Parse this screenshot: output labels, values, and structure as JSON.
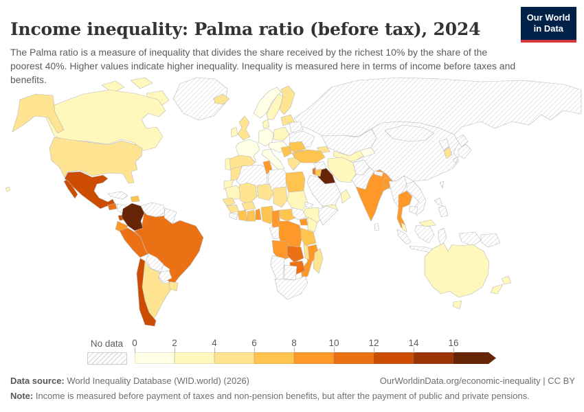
{
  "header": {
    "title": "Income inequality: Palma ratio (before tax), 2024",
    "subtitle": "The Palma ratio is a measure of inequality that divides the share received by the richest 10% by the share of the poorest 40%. Higher values indicate higher inequality. Inequality is measured here in terms of income before taxes and benefits.",
    "logo": {
      "line1": "Our World",
      "line2": "in Data",
      "bg": "#002147",
      "accent": "#D7383E"
    }
  },
  "legend": {
    "no_data_label": "No data",
    "ticks": [
      "0",
      "2",
      "4",
      "6",
      "8",
      "10",
      "12",
      "14",
      "16"
    ],
    "colors": [
      "#FFFFE5",
      "#FFF7BC",
      "#FEE391",
      "#FEC44F",
      "#FE9929",
      "#EC7014",
      "#CC4C02",
      "#993404"
    ],
    "arrow_color": "#662506"
  },
  "footer": {
    "source_label": "Data source:",
    "source_text": " World Inequality Database (WID.world) (2026)",
    "credit": "OurWorldinData.org/economic-inequality | CC BY",
    "note_label": "Note:",
    "note_text": " Income is measured before payment of taxes and non-pension benefits, but after the payment of public and private pensions."
  },
  "chart_data": {
    "type": "heatmap",
    "title": "Income inequality: Palma ratio (before tax), 2024",
    "unit": "Palma ratio (share of richest 10% divided by share of poorest 40%)",
    "axis_range": [
      0,
      16
    ],
    "legend_position": "bottom",
    "bins": [
      {
        "range": "0-2",
        "color": "#FFFFE5"
      },
      {
        "range": "2-4",
        "color": "#FFF7BC"
      },
      {
        "range": "4-6",
        "color": "#FEE391"
      },
      {
        "range": "6-8",
        "color": "#FEC44F"
      },
      {
        "range": "8-10",
        "color": "#FE9929"
      },
      {
        "range": "10-12",
        "color": "#EC7014"
      },
      {
        "range": "12-14",
        "color": "#CC4C02"
      },
      {
        "range": "14-16",
        "color": "#993404"
      },
      {
        "range": "16+",
        "color": "#662506"
      },
      {
        "range": "No data",
        "color": "hatched"
      }
    ]
  },
  "map": {
    "countries": {
      "greenland": "nodata",
      "arctic-islands": "#FFF7BC",
      "canada": "#FFF7BC",
      "alaska": "#FEE391",
      "usa": "#FEE391",
      "hawaii": "#FFF7BC",
      "mexico": "#CC4C02",
      "guatemala": "#EC7014",
      "honduras-nicaragua": "nodata",
      "costa-rica": "#CC4C02",
      "panama": "#EC7014",
      "cuba": "nodata",
      "hispaniola": "#FEC44F",
      "brazil": "#EC7014",
      "venezuela": "nodata",
      "guyanas": "nodata",
      "colombia": "#662506",
      "ecuador": "#FE9929",
      "peru": "#EC7014",
      "bolivia": "nodata",
      "paraguay": "nodata",
      "argentina": "#FEE391",
      "uruguay": "#FEE391",
      "chile": "#CC4C02",
      "iceland": "#FEE391",
      "norway": "#FFFFE5",
      "sweden": "#FFF7BC",
      "finland": "#FEE391",
      "baltics": "#FEE391",
      "uk": "#FEE391",
      "ireland": "#FFF7BC",
      "france": "#FFFFE5",
      "germany": "#FFFFE5",
      "denmark": "#FFF7BC",
      "poland": "#FFF7BC",
      "belarus": "nodata",
      "ukraine": "nodata",
      "central-europe": "#FFFFE5",
      "italy": "#FFFFE5",
      "balkans": "#FEC44F",
      "romania": "#FEC44F",
      "bulgaria": "#FEC44F",
      "greece": "#FEE391",
      "spain": "#FEE391",
      "portugal": "#FFF7BC",
      "russia": "nodata",
      "kazakhstan": "nodata",
      "central-asia": "#FFF7BC",
      "kyrgyzstan-tajikistan": "#FFFFE5",
      "caucasus": "#FEE391",
      "turkey": "#FEC44F",
      "syria": "nodata",
      "iraq": "#662506",
      "iran": "#FFF7BC",
      "israel": "#EC7014",
      "jordan": "#FEC44F",
      "saudi-arabia": "nodata",
      "yemen": "#FFF7BC",
      "oman": "#FFF7BC",
      "afghanistan": "nodata",
      "pakistan": "nodata",
      "india": "#FE9929",
      "nepal": "nodata",
      "bangladesh": "#FE9929",
      "sri-lanka": "nodata",
      "china": "nodata",
      "mongolia": "nodata",
      "north-korea": "nodata",
      "south-korea": "#FEE391",
      "japan": "nodata",
      "taiwan": "nodata",
      "myanmar": "nodata",
      "thailand": "#FE9929",
      "laos-vietnam": "nodata",
      "cambodia": "nodata",
      "malaysia": "#FFF7BC",
      "indonesia": "nodata",
      "philippines": "nodata",
      "papua-new-guinea": "nodata",
      "morocco": "#FEE391",
      "western-sahara": "#FFF7BC",
      "algeria": "nodata",
      "tunisia": "#FE9929",
      "libya": "nodata",
      "egypt": "#FEC44F",
      "mauritania": "#FFF7BC",
      "mali": "#FEE391",
      "burkina-faso": "#FEE391",
      "niger": "#FEE391",
      "chad": "#FEE391",
      "sudan": "#FFF7BC",
      "eritrea": "nodata",
      "ethiopia": "#FFF7BC",
      "somalia": "nodata",
      "senegal": "#FEE391",
      "guinea": "#FEE391",
      "sierra-leone-liberia": "nodata",
      "ivory-coast": "#FEC44F",
      "ghana": "#FEC44F",
      "togo-benin": "#FE9929",
      "nigeria": "#FEC44F",
      "cameroon": "#FE9929",
      "central-african-republic": "#FEC44F",
      "south-sudan": "nodata",
      "uganda": "#FE9929",
      "kenya": "#FFF7BC",
      "gabon-congo": "nodata",
      "dr-congo": "#FE9929",
      "tanzania": "#FEC44F",
      "angola": "#FE9929",
      "zambia": "#EC7014",
      "malawi": "#FEE391",
      "mozambique": "#FE9929",
      "zimbabwe": "#EC7014",
      "namibia": "nodata",
      "botswana": "nodata",
      "south-africa": "nodata",
      "madagascar": "#FEE391",
      "australia": "#FFF7BC",
      "new-zealand": "#FFF7BC"
    }
  }
}
